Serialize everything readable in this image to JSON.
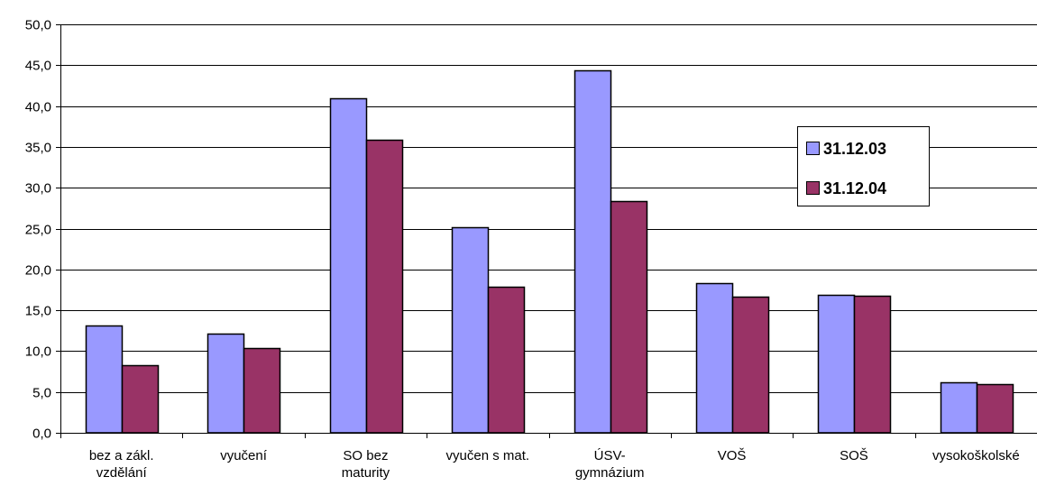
{
  "chart_data": {
    "type": "bar",
    "categories": [
      [
        "bez a zákl.",
        "vzdělání"
      ],
      [
        "vyučení"
      ],
      [
        "SO bez",
        "maturity"
      ],
      [
        "vyučen s mat."
      ],
      [
        "ÚSV-",
        "gymnázium"
      ],
      [
        "VOŠ"
      ],
      [
        "SOŠ"
      ],
      [
        "vysokoškolské"
      ]
    ],
    "series": [
      {
        "name": "31.12.03",
        "color": "#9999ff",
        "values": [
          13.1,
          12.1,
          41.0,
          25.2,
          44.4,
          18.3,
          16.9,
          6.2
        ]
      },
      {
        "name": "31.12.04",
        "color": "#993366",
        "values": [
          8.3,
          10.4,
          35.9,
          17.9,
          28.4,
          16.7,
          16.8,
          6.0
        ]
      }
    ],
    "y_ticks": [
      "0,0",
      "5,0",
      "10,0",
      "15,0",
      "20,0",
      "25,0",
      "30,0",
      "35,0",
      "40,0",
      "45,0",
      "50,0"
    ],
    "ylim": [
      0,
      50
    ],
    "y_step": 5,
    "grid": true,
    "legend_position": "right"
  }
}
